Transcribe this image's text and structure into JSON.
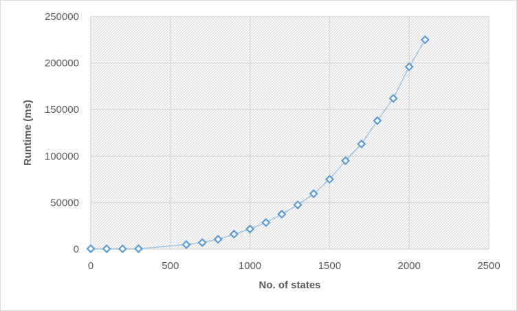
{
  "chart_data": {
    "type": "scatter",
    "title": "",
    "xlabel": "No. of states",
    "ylabel": "Runtime (ms)",
    "xlim": [
      0,
      2500
    ],
    "ylim": [
      0,
      250000
    ],
    "x_ticks": [
      0,
      500,
      1000,
      1500,
      2000,
      2500
    ],
    "y_ticks": [
      0,
      50000,
      100000,
      150000,
      200000,
      250000
    ],
    "x_tick_labels": [
      "0",
      "500",
      "1000",
      "1500",
      "2000",
      "2500"
    ],
    "y_tick_labels": [
      "0",
      "50000",
      "100000",
      "150000",
      "200000",
      "250000"
    ],
    "grid": true,
    "plot_background": "hatched",
    "connected_line": true,
    "marker": "diamond-open",
    "colors": {
      "marker": "#5b9bd5",
      "line": "#9dc3e6",
      "grid": "#d9d9d9",
      "text": "#595959"
    },
    "series": [
      {
        "x": [
          0,
          100,
          200,
          300,
          600,
          700,
          800,
          900,
          1000,
          1100,
          1200,
          1300,
          1400,
          1500,
          1600,
          1700,
          1800,
          1900,
          2000,
          2100
        ],
        "y": [
          400,
          300,
          300,
          400,
          4800,
          7000,
          10500,
          16000,
          21500,
          28500,
          37500,
          47500,
          59500,
          75000,
          95000,
          113000,
          138000,
          162000,
          196000,
          225000
        ]
      }
    ]
  }
}
